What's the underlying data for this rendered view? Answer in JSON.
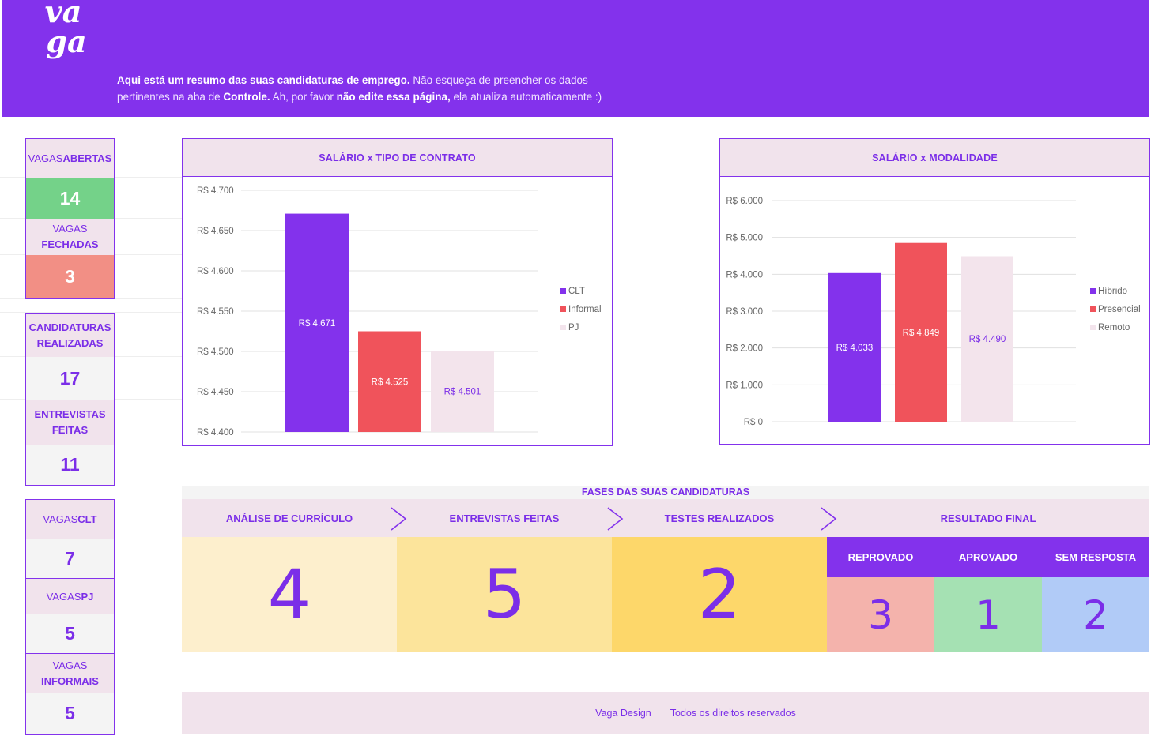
{
  "header": {
    "logo_text": "vaga",
    "intro_line1_bold": "Aqui está um resumo das suas candidaturas de emprego.",
    "intro_line1_rest": " Não esqueça de preencher os dados",
    "intro_line2_a": "pertinentes na aba de ",
    "intro_line2_b": "Controle.",
    "intro_line2_c": " Ah, por favor ",
    "intro_line2_d": "não edite essa página,",
    "intro_line2_e": " ela atualiza automaticamente :)"
  },
  "kpis": {
    "abertas_label_a": "VAGAS ",
    "abertas_label_b": "ABERTAS",
    "abertas_value": "14",
    "fechadas_label_a": "VAGAS",
    "fechadas_label_b": "FECHADAS",
    "fechadas_value": "3",
    "candidaturas_label_a": "CANDIDATURAS",
    "candidaturas_label_b": "REALIZADAS",
    "candidaturas_value": "17",
    "entrevistas_label_a": "ENTREVISTAS",
    "entrevistas_label_b": "FEITAS",
    "entrevistas_value": "11",
    "clt_label_a": "VAGAS ",
    "clt_label_b": "CLT",
    "clt_value": "7",
    "pj_label_a": "VAGAS ",
    "pj_label_b": "PJ",
    "pj_value": "5",
    "informais_label_a": "VAGAS",
    "informais_label_b": "INFORMAIS",
    "informais_value": "5"
  },
  "colors": {
    "purple": "#8332ec",
    "red": "#f0535b",
    "pink": "#f3e4ec",
    "text": "#7b2ee8",
    "axis": "#666666",
    "grid": "#e0e0e0"
  },
  "chart_data": [
    {
      "type": "bar",
      "title": "SALÁRIO x TIPO DE CONTRATO",
      "categories": [
        "CLT",
        "Informal",
        "PJ"
      ],
      "values": [
        4671,
        4525,
        4501
      ],
      "data_labels": [
        "R$ 4.671",
        "R$ 4.525",
        "R$ 4.501"
      ],
      "legend": [
        "CLT",
        "Informal",
        "PJ"
      ],
      "legend_position": "right",
      "ylim": [
        4400,
        4700
      ],
      "yticks": [
        4400,
        4450,
        4500,
        4550,
        4600,
        4650,
        4700
      ],
      "ytick_labels": [
        "R$ 4.400",
        "R$ 4.450",
        "R$ 4.500",
        "R$ 4.550",
        "R$ 4.600",
        "R$ 4.650",
        "R$ 4.700"
      ],
      "grid": true
    },
    {
      "type": "bar",
      "title": "SALÁRIO x MODALIDADE",
      "categories": [
        "Híbrido",
        "Presencial",
        "Remoto"
      ],
      "values": [
        4033,
        4849,
        4490
      ],
      "data_labels": [
        "R$ 4.033",
        "R$ 4.849",
        "R$ 4.490"
      ],
      "legend": [
        "Híbrido",
        "Presencial",
        "Remoto"
      ],
      "legend_position": "right",
      "ylim": [
        0,
        6000
      ],
      "yticks": [
        0,
        1000,
        2000,
        3000,
        4000,
        5000,
        6000
      ],
      "ytick_labels": [
        "R$ 0",
        "R$ 1.000",
        "R$ 2.000",
        "R$ 3.000",
        "R$ 4.000",
        "R$ 5.000",
        "R$ 6.000"
      ],
      "grid": true
    }
  ],
  "phases": {
    "title": "FASES DAS SUAS CANDIDATURAS",
    "analise_label": "ANÁLISE DE CURRÍCULO",
    "analise_value": "4",
    "entrevistas_label": "ENTREVISTAS FEITAS",
    "entrevistas_value": "5",
    "testes_label": "TESTES REALIZADOS",
    "testes_value": "2",
    "resultado_label": "RESULTADO FINAL",
    "reprovado_label": "REPROVADO",
    "reprovado_value": "3",
    "aprovado_label": "APROVADO",
    "aprovado_value": "1",
    "sem_resposta_label": "SEM RESPOSTA",
    "sem_resposta_value": "2"
  },
  "footer": {
    "brand": "Vaga Design",
    "rights": "Todos os direitos reservados"
  }
}
